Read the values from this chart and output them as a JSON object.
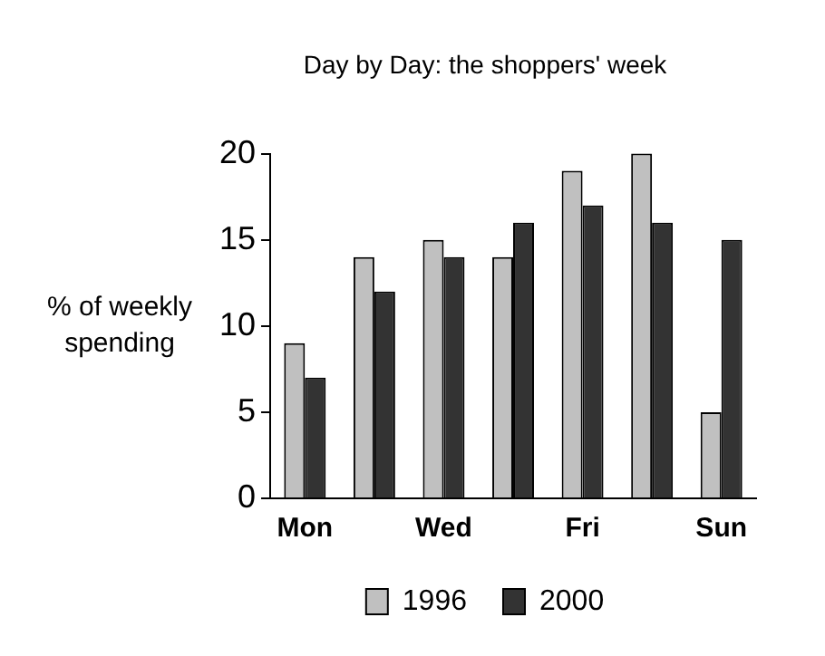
{
  "chart_data": {
    "type": "bar",
    "title": "Day by Day: the shoppers' week",
    "ylabel": "% of weekly spending",
    "categories": [
      "Mon",
      null,
      "Wed",
      null,
      "Fri",
      null,
      "Sun"
    ],
    "series": [
      {
        "name": "1996",
        "color": "#c0c0c0",
        "values": [
          9,
          14,
          15,
          14,
          19,
          20,
          5
        ]
      },
      {
        "name": "2000",
        "color": "#333333",
        "values": [
          7,
          12,
          14,
          16,
          17,
          16,
          15
        ]
      }
    ],
    "ylim": [
      0,
      20
    ],
    "yticks": [
      0,
      5,
      10,
      15,
      20
    ],
    "grid": false,
    "legend": "bottom"
  }
}
